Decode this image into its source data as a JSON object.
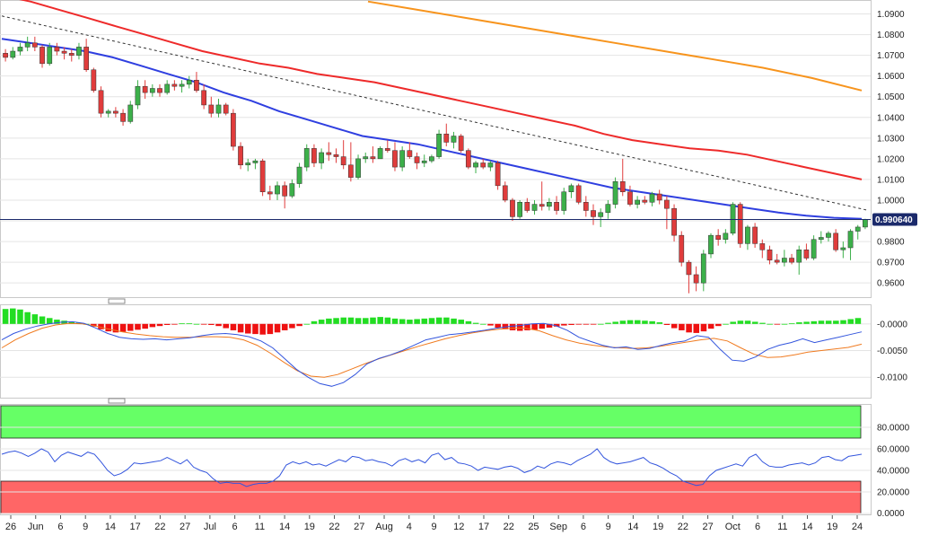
{
  "colors": {
    "up": "#3cb04a",
    "down": "#e03c3c",
    "ema_fast": "#2f3fe0",
    "ema_slow": "#ee2a2a",
    "ema_long": "#f7941d",
    "trendline": "#333333",
    "price_line": "#1b2a6b",
    "macd_line": "#3355dd",
    "signal_line": "#f07b20",
    "hist_up": "#22dd22",
    "hist_down": "#ee1111",
    "rsi_line": "#3355dd",
    "overbought_zone": "#66ff66",
    "oversold_zone": "#ff6666"
  },
  "chart_data": [
    {
      "type": "candlestick",
      "panel": "price",
      "ylim": [
        0.954,
        1.095
      ],
      "y_ticks": [
        "0.9600",
        "0.9700",
        "0.9800",
        "0.9900",
        "1.0000",
        "1.0100",
        "1.0200",
        "1.0300",
        "1.0400",
        "1.0500",
        "1.0600",
        "1.0700",
        "1.0800",
        "1.0900"
      ],
      "last_price_label": "0.990640",
      "last_price": 0.99064,
      "candles": [
        [
          1.071,
          1.073,
          1.067,
          1.069
        ],
        [
          1.069,
          1.074,
          1.068,
          1.072
        ],
        [
          1.072,
          1.076,
          1.07,
          1.074
        ],
        [
          1.074,
          1.079,
          1.072,
          1.076
        ],
        [
          1.076,
          1.079,
          1.072,
          1.074
        ],
        [
          1.074,
          1.075,
          1.064,
          1.066
        ],
        [
          1.066,
          1.076,
          1.065,
          1.074
        ],
        [
          1.074,
          1.076,
          1.07,
          1.072
        ],
        [
          1.072,
          1.074,
          1.068,
          1.071
        ],
        [
          1.071,
          1.073,
          1.067,
          1.07
        ],
        [
          1.07,
          1.076,
          1.068,
          1.074
        ],
        [
          1.074,
          1.078,
          1.062,
          1.063
        ],
        [
          1.063,
          1.064,
          1.052,
          1.053
        ],
        [
          1.053,
          1.055,
          1.04,
          1.042
        ],
        [
          1.042,
          1.044,
          1.04,
          1.043
        ],
        [
          1.043,
          1.045,
          1.04,
          1.042
        ],
        [
          1.042,
          1.044,
          1.036,
          1.038
        ],
        [
          1.038,
          1.048,
          1.037,
          1.046
        ],
        [
          1.046,
          1.058,
          1.044,
          1.055
        ],
        [
          1.055,
          1.058,
          1.049,
          1.052
        ],
        [
          1.052,
          1.056,
          1.05,
          1.054
        ],
        [
          1.054,
          1.056,
          1.05,
          1.052
        ],
        [
          1.052,
          1.058,
          1.051,
          1.056
        ],
        [
          1.056,
          1.058,
          1.053,
          1.055
        ],
        [
          1.055,
          1.058,
          1.052,
          1.056
        ],
        [
          1.056,
          1.06,
          1.054,
          1.058
        ],
        [
          1.058,
          1.062,
          1.052,
          1.053
        ],
        [
          1.053,
          1.056,
          1.044,
          1.046
        ],
        [
          1.046,
          1.05,
          1.04,
          1.042
        ],
        [
          1.042,
          1.049,
          1.04,
          1.046
        ],
        [
          1.046,
          1.047,
          1.041,
          1.042
        ],
        [
          1.042,
          1.044,
          1.024,
          1.026
        ],
        [
          1.026,
          1.028,
          1.015,
          1.017
        ],
        [
          1.017,
          1.02,
          1.014,
          1.018
        ],
        [
          1.018,
          1.02,
          1.015,
          1.019
        ],
        [
          1.019,
          1.02,
          1.002,
          1.004
        ],
        [
          1.004,
          1.007,
          1.0,
          1.003
        ],
        [
          1.003,
          1.009,
          1.0,
          1.007
        ],
        [
          1.007,
          1.009,
          0.996,
          1.002
        ],
        [
          1.002,
          1.01,
          1.001,
          1.008
        ],
        [
          1.008,
          1.018,
          1.006,
          1.016
        ],
        [
          1.016,
          1.027,
          1.014,
          1.025
        ],
        [
          1.025,
          1.027,
          1.016,
          1.018
        ],
        [
          1.018,
          1.025,
          1.015,
          1.023
        ],
        [
          1.023,
          1.028,
          1.019,
          1.022
        ],
        [
          1.022,
          1.025,
          1.018,
          1.021
        ],
        [
          1.021,
          1.029,
          1.015,
          1.017
        ],
        [
          1.017,
          1.028,
          1.009,
          1.011
        ],
        [
          1.011,
          1.022,
          1.01,
          1.02
        ],
        [
          1.02,
          1.023,
          1.018,
          1.021
        ],
        [
          1.021,
          1.026,
          1.018,
          1.02
        ],
        [
          1.02,
          1.026,
          1.02,
          1.025
        ],
        [
          1.025,
          1.029,
          1.023,
          1.024
        ],
        [
          1.024,
          1.028,
          1.014,
          1.016
        ],
        [
          1.016,
          1.026,
          1.014,
          1.024
        ],
        [
          1.024,
          1.028,
          1.02,
          1.021
        ],
        [
          1.021,
          1.023,
          1.015,
          1.018
        ],
        [
          1.018,
          1.022,
          1.016,
          1.019
        ],
        [
          1.019,
          1.022,
          1.018,
          1.021
        ],
        [
          1.021,
          1.034,
          1.02,
          1.032
        ],
        [
          1.032,
          1.037,
          1.026,
          1.028
        ],
        [
          1.028,
          1.033,
          1.025,
          1.031
        ],
        [
          1.031,
          1.032,
          1.023,
          1.024
        ],
        [
          1.024,
          1.025,
          1.015,
          1.016
        ],
        [
          1.016,
          1.019,
          1.013,
          1.018
        ],
        [
          1.018,
          1.02,
          1.015,
          1.016
        ],
        [
          1.016,
          1.019,
          1.014,
          1.018
        ],
        [
          1.018,
          1.019,
          1.005,
          1.007
        ],
        [
          1.007,
          1.009,
          0.999,
          1.0
        ],
        [
          1.0,
          1.001,
          0.99,
          0.992
        ],
        [
          0.992,
          1.0,
          0.991,
          0.999
        ],
        [
          0.999,
          1.001,
          0.994,
          0.995
        ],
        [
          0.995,
          1.0,
          0.993,
          0.998
        ],
        [
          0.998,
          1.009,
          0.995,
          0.997
        ],
        [
          0.997,
          1.001,
          0.995,
          0.999
        ],
        [
          0.999,
          1.002,
          0.993,
          0.995
        ],
        [
          0.995,
          1.006,
          0.993,
          1.004
        ],
        [
          1.004,
          1.008,
          1.001,
          1.007
        ],
        [
          1.007,
          1.008,
          0.998,
          0.999
        ],
        [
          0.999,
          1.002,
          0.992,
          0.995
        ],
        [
          0.995,
          0.998,
          0.988,
          0.992
        ],
        [
          0.992,
          0.996,
          0.987,
          0.994
        ],
        [
          0.994,
          1.0,
          0.991,
          0.998
        ],
        [
          0.998,
          1.011,
          0.996,
          1.009
        ],
        [
          1.009,
          1.02,
          1.002,
          1.004
        ],
        [
          1.004,
          1.007,
          0.997,
          0.998
        ],
        [
          0.998,
          1.002,
          0.996,
          1.0
        ],
        [
          1.0,
          1.002,
          0.998,
          0.999
        ],
        [
          0.999,
          1.004,
          0.997,
          1.003
        ],
        [
          1.003,
          1.005,
          0.998,
          1.0
        ],
        [
          1.0,
          1.002,
          0.986,
          0.996
        ],
        [
          0.996,
          0.998,
          0.98,
          0.983
        ],
        [
          0.983,
          0.985,
          0.968,
          0.97
        ],
        [
          0.97,
          0.971,
          0.955,
          0.964
        ],
        [
          0.964,
          0.968,
          0.956,
          0.96
        ],
        [
          0.96,
          0.976,
          0.956,
          0.974
        ],
        [
          0.974,
          0.984,
          0.972,
          0.983
        ],
        [
          0.983,
          0.986,
          0.978,
          0.981
        ],
        [
          0.981,
          0.986,
          0.979,
          0.984
        ],
        [
          0.984,
          0.999,
          0.983,
          0.998
        ],
        [
          0.998,
          0.999,
          0.977,
          0.979
        ],
        [
          0.979,
          0.988,
          0.976,
          0.987
        ],
        [
          0.987,
          0.989,
          0.977,
          0.979
        ],
        [
          0.979,
          0.981,
          0.972,
          0.976
        ],
        [
          0.976,
          0.978,
          0.969,
          0.971
        ],
        [
          0.971,
          0.974,
          0.969,
          0.97
        ],
        [
          0.97,
          0.976,
          0.968,
          0.972
        ],
        [
          0.972,
          0.974,
          0.969,
          0.97
        ],
        [
          0.97,
          0.978,
          0.964,
          0.976
        ],
        [
          0.976,
          0.979,
          0.971,
          0.972
        ],
        [
          0.972,
          0.983,
          0.971,
          0.981
        ],
        [
          0.981,
          0.985,
          0.979,
          0.982
        ],
        [
          0.982,
          0.985,
          0.98,
          0.984
        ],
        [
          0.984,
          0.986,
          0.975,
          0.976
        ],
        [
          0.976,
          0.98,
          0.972,
          0.977
        ],
        [
          0.977,
          0.986,
          0.971,
          0.985
        ],
        [
          0.985,
          0.988,
          0.981,
          0.987
        ],
        [
          0.987,
          0.991,
          0.986,
          0.9906
        ]
      ],
      "ema_fast_y": [
        1.078,
        1.076,
        1.074,
        1.072,
        1.069,
        1.065,
        1.061,
        1.057,
        1.052,
        1.048,
        1.043,
        1.039,
        1.035,
        1.031,
        1.029,
        1.027,
        1.024,
        1.021,
        1.018,
        1.015,
        1.012,
        1.009,
        1.006,
        1.004,
        1.002,
        1.0,
        0.998,
        0.996,
        0.994,
        0.9925,
        0.9915,
        0.991
      ],
      "ema_slow_y": [
        1.099,
        1.096,
        1.092,
        1.088,
        1.084,
        1.08,
        1.076,
        1.072,
        1.069,
        1.066,
        1.064,
        1.061,
        1.059,
        1.057,
        1.054,
        1.051,
        1.048,
        1.045,
        1.042,
        1.039,
        1.036,
        1.032,
        1.029,
        1.027,
        1.025,
        1.024,
        1.022,
        1.019,
        1.016,
        1.013,
        1.01
      ],
      "ema_long_y": [
        1.096,
        1.092,
        1.088,
        1.084,
        1.08,
        1.076,
        1.072,
        1.068,
        1.064,
        1.059,
        1.053
      ],
      "trendline": [
        [
          1.089
        ],
        [
          0.995
        ]
      ]
    },
    {
      "type": "macd",
      "panel": "macd",
      "ylim": [
        -0.0135,
        0.003
      ],
      "y_ticks": [
        "-0.0000",
        "-0.0050",
        "-0.0100"
      ],
      "hist": [
        0.0028,
        0.0029,
        0.0027,
        0.0022,
        0.0018,
        0.0014,
        0.0011,
        0.0008,
        0.0006,
        0.0004,
        0.0002,
        0.0,
        -0.0005,
        -0.001,
        -0.0014,
        -0.0016,
        -0.0015,
        -0.0013,
        -0.0011,
        -0.0009,
        -0.0006,
        -0.0004,
        -0.0002,
        -0.0001,
        0.0001,
        0.0001,
        0.0,
        -0.0001,
        -0.0002,
        -0.0004,
        -0.0008,
        -0.0012,
        -0.0016,
        -0.0018,
        -0.0019,
        -0.002,
        -0.0019,
        -0.0016,
        -0.0012,
        -0.0008,
        -0.0004,
        0.0,
        0.0005,
        0.0008,
        0.001,
        0.0011,
        0.0012,
        0.0012,
        0.0011,
        0.0011,
        0.0012,
        0.0013,
        0.0012,
        0.001,
        0.0009,
        0.0008,
        0.0009,
        0.001,
        0.0011,
        0.0012,
        0.0012,
        0.001,
        0.0008,
        0.0005,
        0.0002,
        0.0,
        -0.0003,
        -0.0007,
        -0.001,
        -0.0012,
        -0.0013,
        -0.0012,
        -0.0011,
        -0.0009,
        -0.0007,
        -0.0005,
        -0.0003,
        -0.0002,
        -0.0001,
        -0.0001,
        -0.0001,
        0.0,
        0.0002,
        0.0004,
        0.0006,
        0.0007,
        0.0007,
        0.0006,
        0.0005,
        0.0003,
        -0.0002,
        -0.0008,
        -0.0012,
        -0.0016,
        -0.0017,
        -0.0014,
        -0.0009,
        -0.0004,
        0.0,
        0.0004,
        0.0006,
        0.0006,
        0.0004,
        0.0002,
        0.0,
        -0.0001,
        0.0,
        0.0001,
        0.0003,
        0.0004,
        0.0005,
        0.0006,
        0.0006,
        0.0006,
        0.0007,
        0.0009,
        0.0011
      ],
      "macd": [
        -0.003,
        -0.0018,
        -0.001,
        -0.0004,
        0.0,
        0.0003,
        0.0004,
        0.0001,
        -0.0008,
        -0.0018,
        -0.0025,
        -0.0028,
        -0.0029,
        -0.0028,
        -0.003,
        -0.0028,
        -0.0026,
        -0.0022,
        -0.0019,
        -0.0018,
        -0.002,
        -0.0024,
        -0.0032,
        -0.0045,
        -0.0065,
        -0.0085,
        -0.01,
        -0.0112,
        -0.0117,
        -0.011,
        -0.0095,
        -0.0075,
        -0.0065,
        -0.0058,
        -0.005,
        -0.004,
        -0.003,
        -0.0025,
        -0.002,
        -0.0018,
        -0.0015,
        -0.0012,
        -0.0008,
        -0.0005,
        -0.0003,
        0.0,
        0.0001,
        -0.0003,
        -0.0012,
        -0.0025,
        -0.0033,
        -0.004,
        -0.0045,
        -0.0043,
        -0.0048,
        -0.0046,
        -0.004,
        -0.0035,
        -0.0032,
        -0.0022,
        -0.0025,
        -0.0048,
        -0.0068,
        -0.007,
        -0.0062,
        -0.0048,
        -0.004,
        -0.0035,
        -0.0028,
        -0.0035,
        -0.003,
        -0.0025,
        -0.002,
        -0.0015
      ],
      "signal": [
        -0.0045,
        -0.003,
        -0.0018,
        -0.0008,
        -0.0002,
        0.0001,
        0.0,
        -0.0004,
        -0.001,
        -0.0015,
        -0.0019,
        -0.0022,
        -0.0024,
        -0.0025,
        -0.0025,
        -0.0024,
        -0.0024,
        -0.0025,
        -0.003,
        -0.004,
        -0.0055,
        -0.0072,
        -0.0088,
        -0.0098,
        -0.01,
        -0.0095,
        -0.0085,
        -0.0075,
        -0.0066,
        -0.0058,
        -0.005,
        -0.0042,
        -0.0035,
        -0.0028,
        -0.0022,
        -0.0017,
        -0.0013,
        -0.001,
        -0.0008,
        -0.0008,
        -0.0013,
        -0.0022,
        -0.003,
        -0.0036,
        -0.004,
        -0.0043,
        -0.0045,
        -0.0046,
        -0.0045,
        -0.0042,
        -0.0038,
        -0.0034,
        -0.003,
        -0.0027,
        -0.0032,
        -0.0045,
        -0.0057,
        -0.0063,
        -0.0062,
        -0.0058,
        -0.0053,
        -0.005,
        -0.0047,
        -0.0044,
        -0.0038
      ]
    },
    {
      "type": "rsi",
      "panel": "rsi",
      "ylim": [
        0,
        100
      ],
      "y_ticks": [
        "0.0000",
        "20.0000",
        "40.0000",
        "60.0000",
        "80.0000"
      ],
      "overbought_level": 70,
      "oversold_level": 30,
      "values": [
        55,
        57,
        58,
        56,
        53,
        56,
        60,
        57,
        48,
        54,
        57,
        55,
        53,
        57,
        55,
        48,
        40,
        35,
        37,
        41,
        47,
        46,
        47,
        48,
        49,
        52,
        49,
        46,
        50,
        43,
        40,
        38,
        32,
        28,
        29,
        28,
        28,
        25,
        27,
        28,
        28,
        30,
        35,
        45,
        48,
        46,
        48,
        45,
        46,
        44,
        47,
        50,
        48,
        53,
        52,
        49,
        50,
        48,
        47,
        44,
        49,
        51,
        48,
        50,
        47,
        54,
        56,
        50,
        52,
        47,
        46,
        44,
        40,
        43,
        42,
        41,
        43,
        44,
        42,
        38,
        40,
        44,
        42,
        46,
        48,
        47,
        45,
        49,
        52,
        55,
        60,
        52,
        48,
        46,
        47,
        48,
        50,
        52,
        47,
        45,
        42,
        38,
        35,
        30,
        28,
        26,
        27,
        35,
        40,
        42,
        44,
        46,
        44,
        52,
        55,
        48,
        44,
        43,
        43,
        45,
        46,
        47,
        45,
        47,
        52,
        53,
        50,
        49,
        53,
        54,
        55
      ]
    },
    {
      "type": "x_axis",
      "date_labels": [
        "26",
        "Jun",
        "6",
        "9",
        "14",
        "17",
        "22",
        "27",
        "Jul",
        "6",
        "11",
        "14",
        "19",
        "22",
        "27",
        "Aug",
        "4",
        "9",
        "12",
        "17",
        "22",
        "25",
        "Sep",
        "6",
        "9",
        "14",
        "19",
        "22",
        "27",
        "Oct",
        "6",
        "11",
        "14",
        "19",
        "24"
      ]
    }
  ]
}
